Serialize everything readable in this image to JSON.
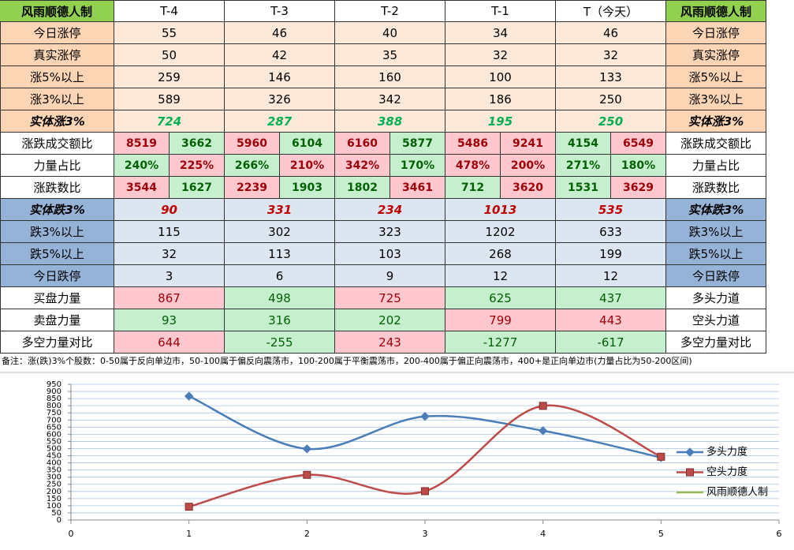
{
  "table": {
    "header": [
      "风雨顺德人制",
      "T-4",
      "T-3",
      "T-2",
      "T-1",
      "T（今天）",
      "风雨顺德人制"
    ],
    "rows": [
      {
        "label": "今日涨停",
        "values": [
          55,
          46,
          40,
          34,
          46
        ],
        "right": "今日涨停"
      },
      {
        "label": "真实涨停",
        "values": [
          50,
          42,
          35,
          32,
          32
        ],
        "right": "真实涨停"
      },
      {
        "label": "涨5%以上",
        "values": [
          259,
          146,
          160,
          100,
          133
        ],
        "right": "涨5%以上"
      },
      {
        "label": "涨3%以上",
        "values": [
          589,
          326,
          342,
          186,
          250
        ],
        "right": "涨3%以上"
      },
      {
        "label": "实体涨3%",
        "values": [
          724,
          287,
          388,
          195,
          250
        ],
        "right": "实体涨3%"
      },
      {
        "label": "涨跌成交额比",
        "values": [
          [
            8519,
            3662
          ],
          [
            5960,
            6104
          ],
          [
            6160,
            5877
          ],
          [
            5486,
            9241
          ],
          [
            4154,
            6549
          ]
        ],
        "right": "涨跌成交额比",
        "fills": [
          [
            "#ffc7ce",
            "#c6efce"
          ],
          [
            "#ffc7ce",
            "#c6efce"
          ],
          [
            "#ffc7ce",
            "#c6efce"
          ],
          [
            "#ffc7ce",
            "#ffc7ce"
          ],
          [
            "#c6efce",
            "#ffc7ce"
          ]
        ]
      },
      {
        "label": "力量占比",
        "values": [
          [
            "240%",
            "225%"
          ],
          [
            "266%",
            "210%"
          ],
          [
            "342%",
            "170%"
          ],
          [
            "478%",
            "200%"
          ],
          [
            "271%",
            "180%"
          ]
        ],
        "right": "力量占比",
        "fills": [
          [
            "#c6efce",
            "#ffc7ce"
          ],
          [
            "#c6efce",
            "#ffc7ce"
          ],
          [
            "#ffc7ce",
            "#c6efce"
          ],
          [
            "#ffc7ce",
            "#ffc7ce"
          ],
          [
            "#c6efce",
            "#c6efce"
          ]
        ]
      },
      {
        "label": "涨跌数比",
        "values": [
          [
            3544,
            1627
          ],
          [
            2239,
            1903
          ],
          [
            1802,
            3461
          ],
          [
            712,
            3620
          ],
          [
            1531,
            3629
          ]
        ],
        "right": "涨跌数比",
        "fills": [
          [
            "#ffc7ce",
            "#c6efce"
          ],
          [
            "#ffc7ce",
            "#c6efce"
          ],
          [
            "#c6efce",
            "#ffc7ce"
          ],
          [
            "#c6efce",
            "#ffc7ce"
          ],
          [
            "#c6efce",
            "#ffc7ce"
          ]
        ]
      },
      {
        "label": "实体跌3%",
        "values": [
          90,
          331,
          234,
          1013,
          535
        ],
        "right": "实体跌3%"
      },
      {
        "label": "跌3%以上",
        "values": [
          115,
          302,
          323,
          1202,
          633
        ],
        "right": "跌3%以上"
      },
      {
        "label": "跌5%以上",
        "values": [
          32,
          113,
          103,
          268,
          199
        ],
        "right": "跌5%以上"
      },
      {
        "label": "今日跌停",
        "values": [
          3,
          6,
          9,
          12,
          12
        ],
        "right": "今日跌停"
      },
      {
        "label": "买盘力量",
        "values": [
          867,
          498,
          725,
          625,
          437
        ],
        "right": "多头力道",
        "fills": [
          "#ffc7ce",
          "#c6efce",
          "#ffc7ce",
          "#c6efce",
          "#c6efce"
        ]
      },
      {
        "label": "卖盘力量",
        "values": [
          93,
          316,
          202,
          799,
          443
        ],
        "right": "空头力道",
        "fills": [
          "#c6efce",
          "#c6efce",
          "#c6efce",
          "#ffc7ce",
          "#ffc7ce"
        ]
      },
      {
        "label": "多空力量对比",
        "values": [
          644,
          -255,
          243,
          -1277,
          -617
        ],
        "right": "多空力量对比",
        "fills": [
          "#ffc7ce",
          "#c6efce",
          "#ffc7ce",
          "#c6efce",
          "#c6efce"
        ]
      }
    ],
    "note": "备注：涨(跌)3%个股数：0-50属于反向单边市，50-100属于偏反向震荡市，100-200属于平衡震荡市，200-400属于偏正向震荡市，400+是正向单边市(力量占比为50-200区间)"
  },
  "chart_data": {
    "type": "line",
    "smooth": true,
    "x": [
      1,
      2,
      3,
      4,
      5
    ],
    "series": [
      {
        "name": "多头力度",
        "color": "#4a7ebb",
        "marker": "diamond",
        "values": [
          867,
          498,
          725,
          625,
          437
        ]
      },
      {
        "name": "空头力度",
        "color": "#be4b48",
        "marker": "square",
        "values": [
          93,
          316,
          202,
          799,
          443
        ]
      },
      {
        "name": "风雨顺德人制",
        "color": "#9bbb59",
        "marker": "none",
        "values": [
          null,
          null,
          null,
          null,
          null
        ]
      }
    ],
    "xlim": [
      0,
      6
    ],
    "xticks": [
      0,
      1,
      2,
      3,
      4,
      5,
      6
    ],
    "ylim": [
      0,
      950
    ],
    "yticks": [
      0,
      50,
      100,
      150,
      200,
      250,
      300,
      350,
      400,
      450,
      500,
      550,
      600,
      650,
      700,
      750,
      800,
      850,
      900,
      950
    ],
    "grid": true,
    "legend": "right"
  }
}
